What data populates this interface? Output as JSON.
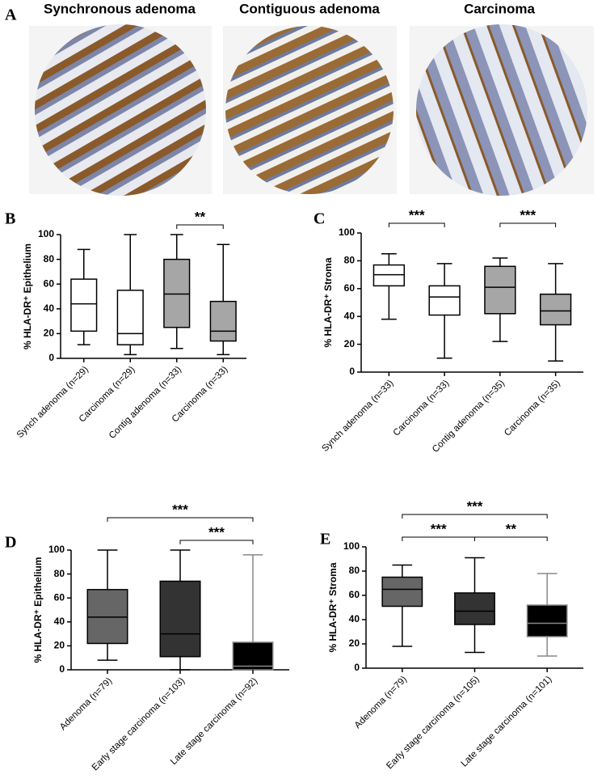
{
  "panel_a": {
    "letter": "A",
    "images": [
      {
        "label": "Synchronous adenoma"
      },
      {
        "label": "Contiguous adenoma"
      },
      {
        "label": "Carcinoma"
      }
    ]
  },
  "chart_data": [
    {
      "type": "box",
      "panel": "B",
      "ylabel": "%  HLA-DR⁺ Epithelium",
      "ylim": [
        0,
        100
      ],
      "yticks": [
        0,
        20,
        40,
        60,
        80,
        100
      ],
      "categories": [
        "Synch adenoma (n=29)",
        "Carcinoma (n=29)",
        "Contig adenoma (n=33)",
        "Carcinoma (n=33)"
      ],
      "boxes": [
        {
          "min": 11,
          "q1": 22,
          "median": 44,
          "q3": 64,
          "max": 88,
          "color": "#ffffff",
          "line_color": "#000000"
        },
        {
          "min": 3,
          "q1": 11,
          "median": 20,
          "q3": 55,
          "max": 100,
          "color": "#ffffff",
          "line_color": "#000000"
        },
        {
          "min": 8,
          "q1": 25,
          "median": 52,
          "q3": 80,
          "max": 100,
          "color": "#a6a6a6",
          "line_color": "#000000"
        },
        {
          "min": 3,
          "q1": 14,
          "median": 22,
          "q3": 46,
          "max": 92,
          "color": "#a6a6a6",
          "line_color": "#000000"
        }
      ],
      "annotations": [
        {
          "pair": [
            2,
            3
          ],
          "label": "**"
        }
      ]
    },
    {
      "type": "box",
      "panel": "C",
      "ylabel": "% HLA-DR⁺ Stroma",
      "ylim": [
        0,
        100
      ],
      "yticks": [
        0,
        20,
        40,
        60,
        80,
        100
      ],
      "categories": [
        "Synch adenoma (n=33)",
        "Carcinoma (n=33)",
        "Contig adenoma (n=35)",
        "Carcinoma (n=35)"
      ],
      "boxes": [
        {
          "min": 38,
          "q1": 62,
          "median": 70,
          "q3": 77,
          "max": 85,
          "color": "#ffffff",
          "line_color": "#000000"
        },
        {
          "min": 10,
          "q1": 41,
          "median": 54,
          "q3": 62,
          "max": 78,
          "color": "#ffffff",
          "line_color": "#000000"
        },
        {
          "min": 22,
          "q1": 42,
          "median": 61,
          "q3": 76,
          "max": 82,
          "color": "#a6a6a6",
          "line_color": "#000000"
        },
        {
          "min": 8,
          "q1": 34,
          "median": 44,
          "q3": 56,
          "max": 78,
          "color": "#a6a6a6",
          "line_color": "#000000"
        }
      ],
      "annotations": [
        {
          "pair": [
            0,
            1
          ],
          "label": "***"
        },
        {
          "pair": [
            2,
            3
          ],
          "label": "***"
        }
      ]
    },
    {
      "type": "box",
      "panel": "D",
      "ylabel": "% HLA-DR⁺ Epithelium",
      "ylim": [
        0,
        100
      ],
      "yticks": [
        0,
        20,
        40,
        60,
        80,
        100
      ],
      "categories": [
        "Adenoma (n=79)",
        "Early stage carcinoma (n=103)",
        "Late stage carcinoma (n=92)"
      ],
      "boxes": [
        {
          "min": 8,
          "q1": 22,
          "median": 44,
          "q3": 67,
          "max": 100,
          "color": "#666666",
          "line_color": "#000000"
        },
        {
          "min": 0,
          "q1": 11,
          "median": 30,
          "q3": 74,
          "max": 100,
          "color": "#333333",
          "line_color": "#000000"
        },
        {
          "min": 0,
          "q1": 0,
          "median": 3,
          "q3": 23,
          "max": 96,
          "color": "#000000",
          "line_color": "#888888"
        }
      ],
      "annotations": [
        {
          "pair": [
            0,
            2
          ],
          "label": "***"
        },
        {
          "pair": [
            1,
            2
          ],
          "label": "***"
        }
      ]
    },
    {
      "type": "box",
      "panel": "E",
      "ylabel": "% HLA-DR⁺ Stroma",
      "ylim": [
        0,
        100
      ],
      "yticks": [
        0,
        20,
        40,
        60,
        80,
        100
      ],
      "categories": [
        "Adenoma (n=79)",
        "Early stage carcinoma (n=105)",
        "Late stage carcinoma (n=101)"
      ],
      "boxes": [
        {
          "min": 18,
          "q1": 51,
          "median": 65,
          "q3": 75,
          "max": 85,
          "color": "#666666",
          "line_color": "#000000"
        },
        {
          "min": 13,
          "q1": 36,
          "median": 47,
          "q3": 62,
          "max": 91,
          "color": "#333333",
          "line_color": "#000000"
        },
        {
          "min": 10,
          "q1": 26,
          "median": 37,
          "q3": 52,
          "max": 78,
          "color": "#000000",
          "line_color": "#888888"
        }
      ],
      "annotations": [
        {
          "pair": [
            0,
            2
          ],
          "label": "***"
        },
        {
          "pair": [
            0,
            1
          ],
          "label": "***"
        },
        {
          "pair": [
            1,
            2
          ],
          "label": "**"
        }
      ]
    }
  ]
}
